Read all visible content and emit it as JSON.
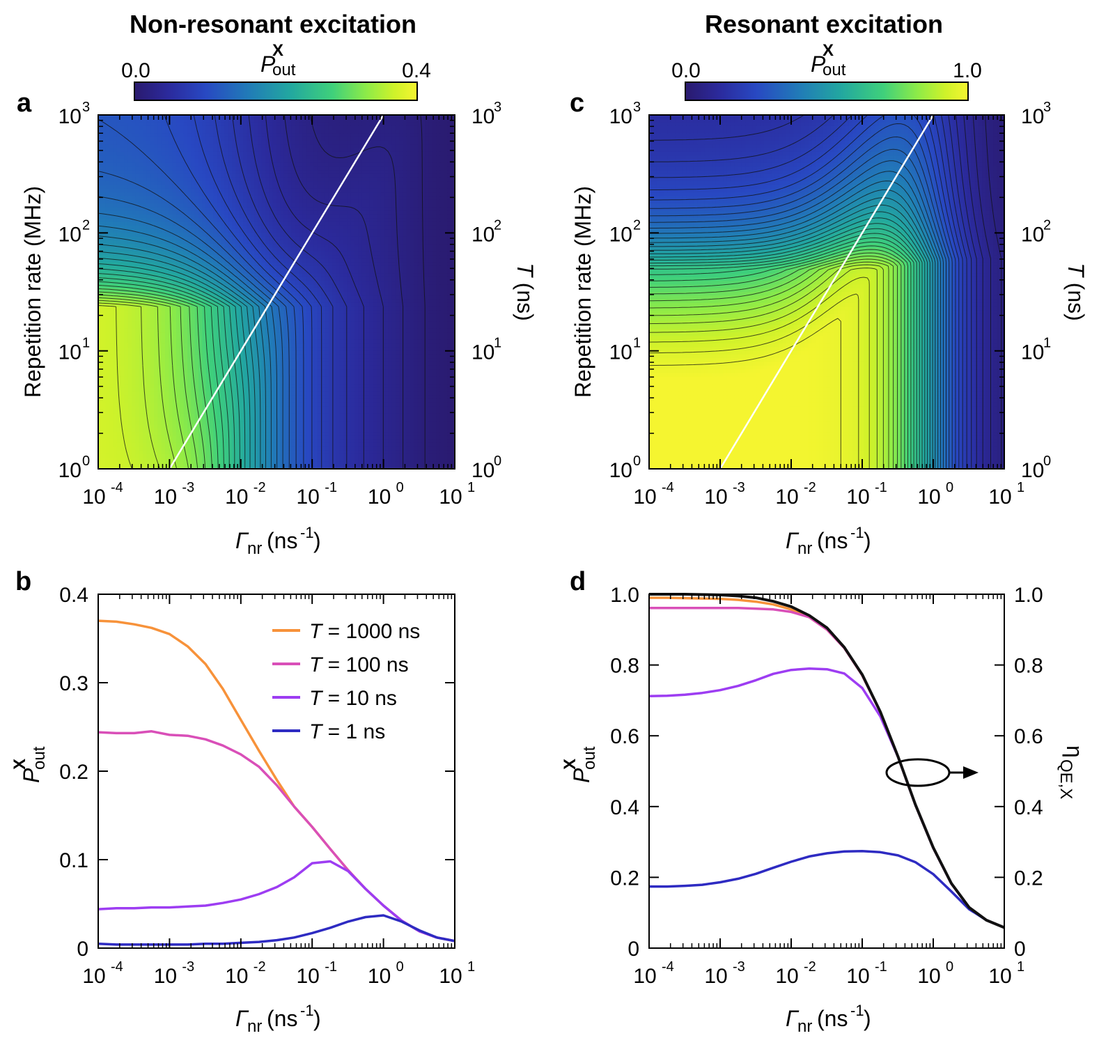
{
  "figure": {
    "title_left": "Non-resonant excitation",
    "title_right": "Resonant excitation"
  },
  "chart_data": [
    {
      "panel": "a",
      "type": "heatmap",
      "description_title": "Non-resonant excitation",
      "x_label": "Γnr (ns-1)",
      "y_label": "Repetition rate (MHz)",
      "y2_label": "T (ns)",
      "x_scale": "log",
      "y_scale": "log",
      "xlim": [
        0.0001,
        10
      ],
      "ylim": [
        1,
        1000
      ],
      "x_tick_base": "10",
      "x_tick_exponents": [
        "-4",
        "-3",
        "-2",
        "-1",
        "0",
        "1"
      ],
      "y_tick_exponents": [
        "0",
        "1",
        "2",
        "3"
      ],
      "y2_tick_exponents": [
        "3",
        "2",
        "1",
        "0"
      ],
      "colorbar": {
        "label": "P_out^X",
        "min": 0.0,
        "max": 0.4,
        "min_label": "0.0",
        "max_label": "0.4"
      },
      "overlay_line": {
        "description": "T = 1/Γnr",
        "x": [
          0.001,
          1
        ],
        "y": [
          1,
          1000
        ],
        "color": "#ffffff"
      }
    },
    {
      "panel": "b",
      "type": "line",
      "x_label": "Γnr (ns-1)",
      "y_label": "P_out^X",
      "x_scale": "log",
      "xlim": [
        0.0001,
        10
      ],
      "ylim": [
        0,
        0.4
      ],
      "x_tick_exponents": [
        "-4",
        "-3",
        "-2",
        "-1",
        "0",
        "1"
      ],
      "y_ticks": [
        "0",
        "0.1",
        "0.2",
        "0.3",
        "0.4"
      ],
      "legend_position": "top-right",
      "x": [
        0.0001,
        0.00018,
        0.00032,
        0.00056,
        0.001,
        0.0018,
        0.0032,
        0.0056,
        0.01,
        0.018,
        0.032,
        0.056,
        0.1,
        0.18,
        0.32,
        0.56,
        1,
        1.8,
        3.2,
        5.6,
        10
      ],
      "series": [
        {
          "name": "T = 1000 ns",
          "T_value": "1000",
          "color": "#f7923a",
          "values": [
            0.37,
            0.369,
            0.366,
            0.362,
            0.355,
            0.341,
            0.321,
            0.293,
            0.258,
            0.223,
            0.19,
            0.16,
            0.137,
            0.112,
            0.088,
            0.067,
            0.048,
            0.031,
            0.019,
            0.012,
            0.008
          ]
        },
        {
          "name": "T = 100 ns",
          "T_value": "100",
          "color": "#d94fb8",
          "values": [
            0.244,
            0.243,
            0.243,
            0.245,
            0.241,
            0.24,
            0.236,
            0.229,
            0.219,
            0.205,
            0.184,
            0.16,
            0.137,
            0.112,
            0.088,
            0.067,
            0.048,
            0.031,
            0.019,
            0.012,
            0.008
          ]
        },
        {
          "name": "T = 10 ns",
          "T_value": "10",
          "color": "#9d3df2",
          "values": [
            0.044,
            0.045,
            0.045,
            0.046,
            0.046,
            0.047,
            0.048,
            0.051,
            0.055,
            0.061,
            0.069,
            0.08,
            0.096,
            0.098,
            0.087,
            0.067,
            0.048,
            0.031,
            0.019,
            0.012,
            0.008
          ]
        },
        {
          "name": "T = 1 ns",
          "T_value": "1",
          "color": "#2e2bc2",
          "values": [
            0.005,
            0.004,
            0.004,
            0.004,
            0.004,
            0.004,
            0.005,
            0.005,
            0.006,
            0.007,
            0.009,
            0.012,
            0.017,
            0.023,
            0.03,
            0.035,
            0.037,
            0.03,
            0.02,
            0.012,
            0.008
          ]
        }
      ]
    },
    {
      "panel": "c",
      "type": "heatmap",
      "description_title": "Resonant excitation",
      "x_label": "Γnr (ns-1)",
      "y_label": "Repetition rate (MHz)",
      "y2_label": "T (ns)",
      "x_scale": "log",
      "y_scale": "log",
      "xlim": [
        0.0001,
        10
      ],
      "ylim": [
        1,
        1000
      ],
      "x_tick_exponents": [
        "-4",
        "-3",
        "-2",
        "-1",
        "0",
        "1"
      ],
      "y_tick_exponents": [
        "0",
        "1",
        "2",
        "3"
      ],
      "y2_tick_exponents": [
        "3",
        "2",
        "1",
        "0"
      ],
      "colorbar": {
        "label": "P_out^X",
        "min": 0.0,
        "max": 1.0,
        "min_label": "0.0",
        "max_label": "1.0"
      },
      "overlay_line": {
        "description": "T = 1/Γnr",
        "x": [
          0.001,
          1
        ],
        "y": [
          1,
          1000
        ],
        "color": "#ffffff"
      }
    },
    {
      "panel": "d",
      "type": "line",
      "x_label": "Γnr (ns-1)",
      "y_label": "P_out^X",
      "y2_label": "ηQE,X",
      "x_scale": "log",
      "xlim": [
        0.0001,
        10
      ],
      "ylim": [
        0,
        1.0
      ],
      "y2lim": [
        0,
        1.0
      ],
      "x_tick_exponents": [
        "-4",
        "-3",
        "-2",
        "-1",
        "0",
        "1"
      ],
      "y_ticks": [
        "0",
        "0.2",
        "0.4",
        "0.6",
        "0.8",
        "1.0"
      ],
      "annotation": "ellipse around black curve with arrow pointing to right axis",
      "x": [
        0.0001,
        0.00018,
        0.00032,
        0.00056,
        0.001,
        0.0018,
        0.0032,
        0.0056,
        0.01,
        0.018,
        0.032,
        0.056,
        0.1,
        0.18,
        0.32,
        0.56,
        1,
        1.8,
        3.2,
        5.6,
        10
      ],
      "series": [
        {
          "name": "T = 1000 ns",
          "color": "#f7923a",
          "values": [
            0.99,
            0.99,
            0.989,
            0.988,
            0.987,
            0.984,
            0.979,
            0.971,
            0.957,
            0.935,
            0.9,
            0.848,
            0.771,
            0.667,
            0.54,
            0.405,
            0.283,
            0.182,
            0.115,
            0.079,
            0.058
          ]
        },
        {
          "name": "T = 100 ns",
          "color": "#d94fb8",
          "values": [
            0.961,
            0.961,
            0.961,
            0.961,
            0.961,
            0.961,
            0.959,
            0.957,
            0.95,
            0.935,
            0.9,
            0.848,
            0.771,
            0.667,
            0.54,
            0.405,
            0.283,
            0.182,
            0.115,
            0.079,
            0.058
          ]
        },
        {
          "name": "T = 10 ns",
          "color": "#9d3df2",
          "values": [
            0.712,
            0.713,
            0.716,
            0.721,
            0.729,
            0.741,
            0.757,
            0.775,
            0.786,
            0.79,
            0.788,
            0.776,
            0.735,
            0.655,
            0.54,
            0.405,
            0.283,
            0.182,
            0.115,
            0.079,
            0.058
          ]
        },
        {
          "name": "T = 1 ns",
          "color": "#2e2bc2",
          "values": [
            0.174,
            0.174,
            0.176,
            0.179,
            0.186,
            0.196,
            0.21,
            0.227,
            0.244,
            0.259,
            0.268,
            0.273,
            0.274,
            0.271,
            0.262,
            0.243,
            0.209,
            0.16,
            0.11,
            0.079,
            0.058
          ]
        },
        {
          "name": "ηQE,X",
          "color": "#111111",
          "values": [
            1.0,
            1.0,
            1.0,
            0.999,
            0.998,
            0.995,
            0.99,
            0.98,
            0.965,
            0.94,
            0.905,
            0.85,
            0.773,
            0.668,
            0.541,
            0.406,
            0.284,
            0.183,
            0.115,
            0.079,
            0.058
          ]
        }
      ]
    }
  ]
}
